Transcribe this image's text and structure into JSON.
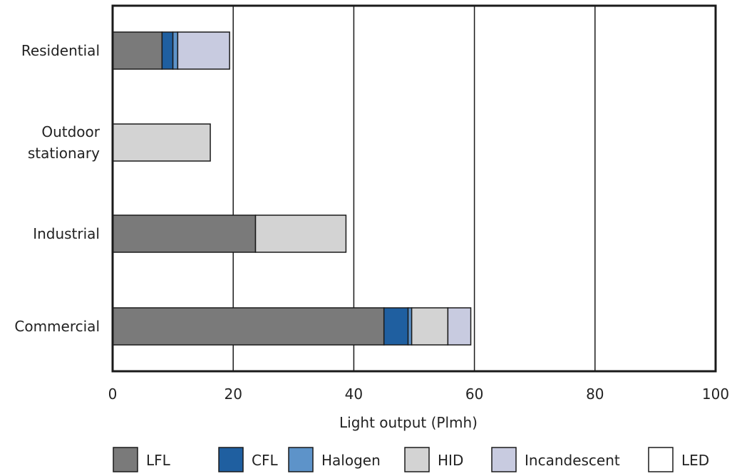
{
  "chart_data": {
    "type": "bar",
    "orientation": "horizontal",
    "stacked": true,
    "categories": [
      "Residential",
      "Outdoor stationary",
      "Industrial",
      "Commercial"
    ],
    "category_label_lines": [
      [
        "Residential"
      ],
      [
        "Outdoor",
        "stationary"
      ],
      [
        "Industrial"
      ],
      [
        "Commercial"
      ]
    ],
    "series": [
      {
        "name": "LFL",
        "color": "#7a7a7a",
        "values": [
          8.2,
          0,
          23.7,
          45.0
        ]
      },
      {
        "name": "CFL",
        "color": "#1f5fa0",
        "values": [
          1.8,
          0,
          0,
          4.0
        ]
      },
      {
        "name": "Halogen",
        "color": "#5d93c9",
        "values": [
          0.8,
          0,
          0,
          0.6
        ]
      },
      {
        "name": "HID",
        "color": "#d3d3d3",
        "values": [
          0,
          16.2,
          15.0,
          6.0
        ]
      },
      {
        "name": "Incandescent",
        "color": "#c8cbe0",
        "values": [
          8.6,
          0,
          0,
          3.8
        ]
      },
      {
        "name": "LED",
        "color": "#ffffff",
        "values": [
          0,
          0,
          0,
          0
        ]
      }
    ],
    "xlabel": "Light output (Plmh)",
    "xlim": [
      0,
      100
    ],
    "xticks": [
      "0",
      "20",
      "40",
      "60",
      "80",
      "100"
    ],
    "grid": "vertical",
    "legend_position": "bottom"
  }
}
